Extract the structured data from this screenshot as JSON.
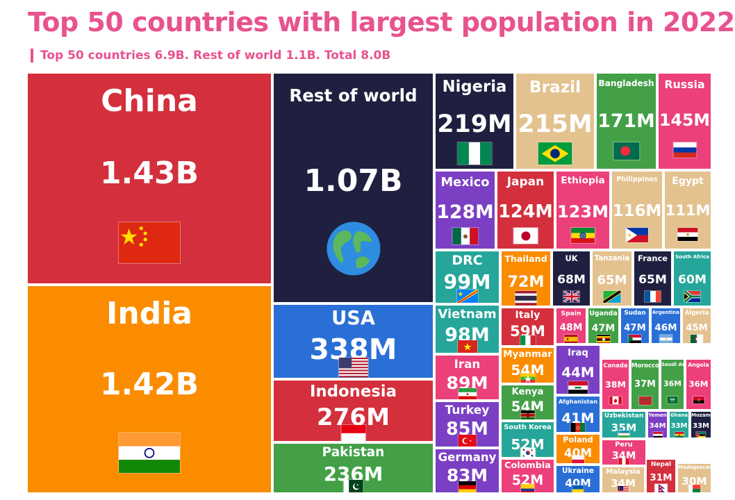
{
  "title": "Top 50 countries with largest population in 2022",
  "subtitle": "Top 50 countries 6.9B. Rest of world 1.1B. Total 8.0B",
  "chart_data": {
    "type": "treemap",
    "unit_note": "population",
    "items": [
      {
        "name": "China",
        "value_label": "1.43B",
        "value": 1430,
        "color": "#d32f3c",
        "flag": "cn"
      },
      {
        "name": "India",
        "value_label": "1.42B",
        "value": 1420,
        "color": "#fb8c00",
        "flag": "in"
      },
      {
        "name": "Rest of world",
        "value_label": "1.07B",
        "value": 1070,
        "color": "#1f2040",
        "flag": "globe"
      },
      {
        "name": "USA",
        "value_label": "338M",
        "value": 338,
        "color": "#2a6fd6",
        "flag": "us"
      },
      {
        "name": "Indonesia",
        "value_label": "276M",
        "value": 276,
        "color": "#d32f3c",
        "flag": "id"
      },
      {
        "name": "Pakistan",
        "value_label": "236M",
        "value": 236,
        "color": "#43a047",
        "flag": "pk"
      },
      {
        "name": "Nigeria",
        "value_label": "219M",
        "value": 219,
        "color": "#1f2040",
        "flag": "ng"
      },
      {
        "name": "Brazil",
        "value_label": "215M",
        "value": 215,
        "color": "#e3c28f",
        "flag": "br"
      },
      {
        "name": "Bangladesh",
        "value_label": "171M",
        "value": 171,
        "color": "#43a047",
        "flag": "bd"
      },
      {
        "name": "Russia",
        "value_label": "145M",
        "value": 145,
        "color": "#ec407a",
        "flag": "ru"
      },
      {
        "name": "Mexico",
        "value_label": "128M",
        "value": 128,
        "color": "#7b3fc4",
        "flag": "mx"
      },
      {
        "name": "Japan",
        "value_label": "124M",
        "value": 124,
        "color": "#d32f3c",
        "flag": "jp"
      },
      {
        "name": "Ethiopia",
        "value_label": "123M",
        "value": 123,
        "color": "#ec407a",
        "flag": "et"
      },
      {
        "name": "Philippines",
        "value_label": "116M",
        "value": 116,
        "color": "#e3c28f",
        "flag": "ph"
      },
      {
        "name": "Egypt",
        "value_label": "111M",
        "value": 111,
        "color": "#e3c28f",
        "flag": "eg"
      },
      {
        "name": "DRC",
        "value_label": "99M",
        "value": 99,
        "color": "#26a69a",
        "flag": "cd"
      },
      {
        "name": "Thailand",
        "value_label": "72M",
        "value": 72,
        "color": "#fb8c00",
        "flag": "th"
      },
      {
        "name": "UK",
        "value_label": "68M",
        "value": 68,
        "color": "#1f2040",
        "flag": "gb"
      },
      {
        "name": "Tanzania",
        "value_label": "65M",
        "value": 65,
        "color": "#e3c28f",
        "flag": "tz"
      },
      {
        "name": "France",
        "value_label": "65M",
        "value": 65,
        "color": "#1f2040",
        "flag": "fr"
      },
      {
        "name": "South Africa",
        "value_label": "60M",
        "value": 60,
        "color": "#26a69a",
        "flag": "za"
      },
      {
        "name": "Vietnam",
        "value_label": "98M",
        "value": 98,
        "color": "#26a69a",
        "flag": "vn"
      },
      {
        "name": "Italy",
        "value_label": "59M",
        "value": 59,
        "color": "#d32f3c",
        "flag": "it"
      },
      {
        "name": "Spain",
        "value_label": "48M",
        "value": 48,
        "color": "#ec407a",
        "flag": "es"
      },
      {
        "name": "Uganda",
        "value_label": "47M",
        "value": 47,
        "color": "#43a047",
        "flag": "ug"
      },
      {
        "name": "Sudan",
        "value_label": "47M",
        "value": 47,
        "color": "#2a6fd6",
        "flag": "sd"
      },
      {
        "name": "Argentina",
        "value_label": "46M",
        "value": 46,
        "color": "#2a6fd6",
        "flag": "ar"
      },
      {
        "name": "Algeria",
        "value_label": "45M",
        "value": 45,
        "color": "#e3c28f",
        "flag": "dz"
      },
      {
        "name": "Iran",
        "value_label": "89M",
        "value": 89,
        "color": "#ec407a",
        "flag": "ir"
      },
      {
        "name": "Myanmar",
        "value_label": "54M",
        "value": 54,
        "color": "#fb8c00",
        "flag": "mm"
      },
      {
        "name": "Iraq",
        "value_label": "44M",
        "value": 44,
        "color": "#7b3fc4",
        "flag": "iq"
      },
      {
        "name": "Canada",
        "value_label": "38M",
        "value": 38,
        "color": "#ec407a",
        "flag": "ca"
      },
      {
        "name": "Morocco",
        "value_label": "37M",
        "value": 37,
        "color": "#43a047",
        "flag": "ma"
      },
      {
        "name": "Saudi Arabia",
        "value_label": "36M",
        "value": 36,
        "color": "#43a047",
        "flag": "sa"
      },
      {
        "name": "Angola",
        "value_label": "36M",
        "value": 36,
        "color": "#ec407a",
        "flag": "ao"
      },
      {
        "name": "Turkey",
        "value_label": "85M",
        "value": 85,
        "color": "#7b3fc4",
        "flag": "tr"
      },
      {
        "name": "Kenya",
        "value_label": "54M",
        "value": 54,
        "color": "#43a047",
        "flag": "ke"
      },
      {
        "name": "Afghanistan",
        "value_label": "41M",
        "value": 41,
        "color": "#2a6fd6",
        "flag": "af"
      },
      {
        "name": "Uzbekistan",
        "value_label": "35M",
        "value": 35,
        "color": "#26a69a",
        "flag": "uz"
      },
      {
        "name": "Yemen",
        "value_label": "34M",
        "value": 34,
        "color": "#7b3fc4",
        "flag": "ye"
      },
      {
        "name": "Ghana",
        "value_label": "33M",
        "value": 33,
        "color": "#26a69a",
        "flag": "gh"
      },
      {
        "name": "Mozambique",
        "value_label": "33M",
        "value": 33,
        "color": "#1f2040",
        "flag": "mz"
      },
      {
        "name": "South Korea",
        "value_label": "52M",
        "value": 52,
        "color": "#26a69a",
        "flag": "kr"
      },
      {
        "name": "Poland",
        "value_label": "40M",
        "value": 40,
        "color": "#fb8c00",
        "flag": "pl"
      },
      {
        "name": "Peru",
        "value_label": "34M",
        "value": 34,
        "color": "#ec407a",
        "flag": "pe"
      },
      {
        "name": "Germany",
        "value_label": "83M",
        "value": 83,
        "color": "#7b3fc4",
        "flag": "de"
      },
      {
        "name": "Colombia",
        "value_label": "52M",
        "value": 52,
        "color": "#ec407a",
        "flag": "co"
      },
      {
        "name": "Ukraine",
        "value_label": "40M",
        "value": 40,
        "color": "#2a6fd6",
        "flag": "ua"
      },
      {
        "name": "Malaysia",
        "value_label": "34M",
        "value": 34,
        "color": "#e3c28f",
        "flag": "my"
      },
      {
        "name": "Nepal",
        "value_label": "31M",
        "value": 31,
        "color": "#d32f3c",
        "flag": "np"
      },
      {
        "name": "Madagascar",
        "value_label": "30M",
        "value": 30,
        "color": "#e3c28f",
        "flag": "mg"
      }
    ]
  }
}
